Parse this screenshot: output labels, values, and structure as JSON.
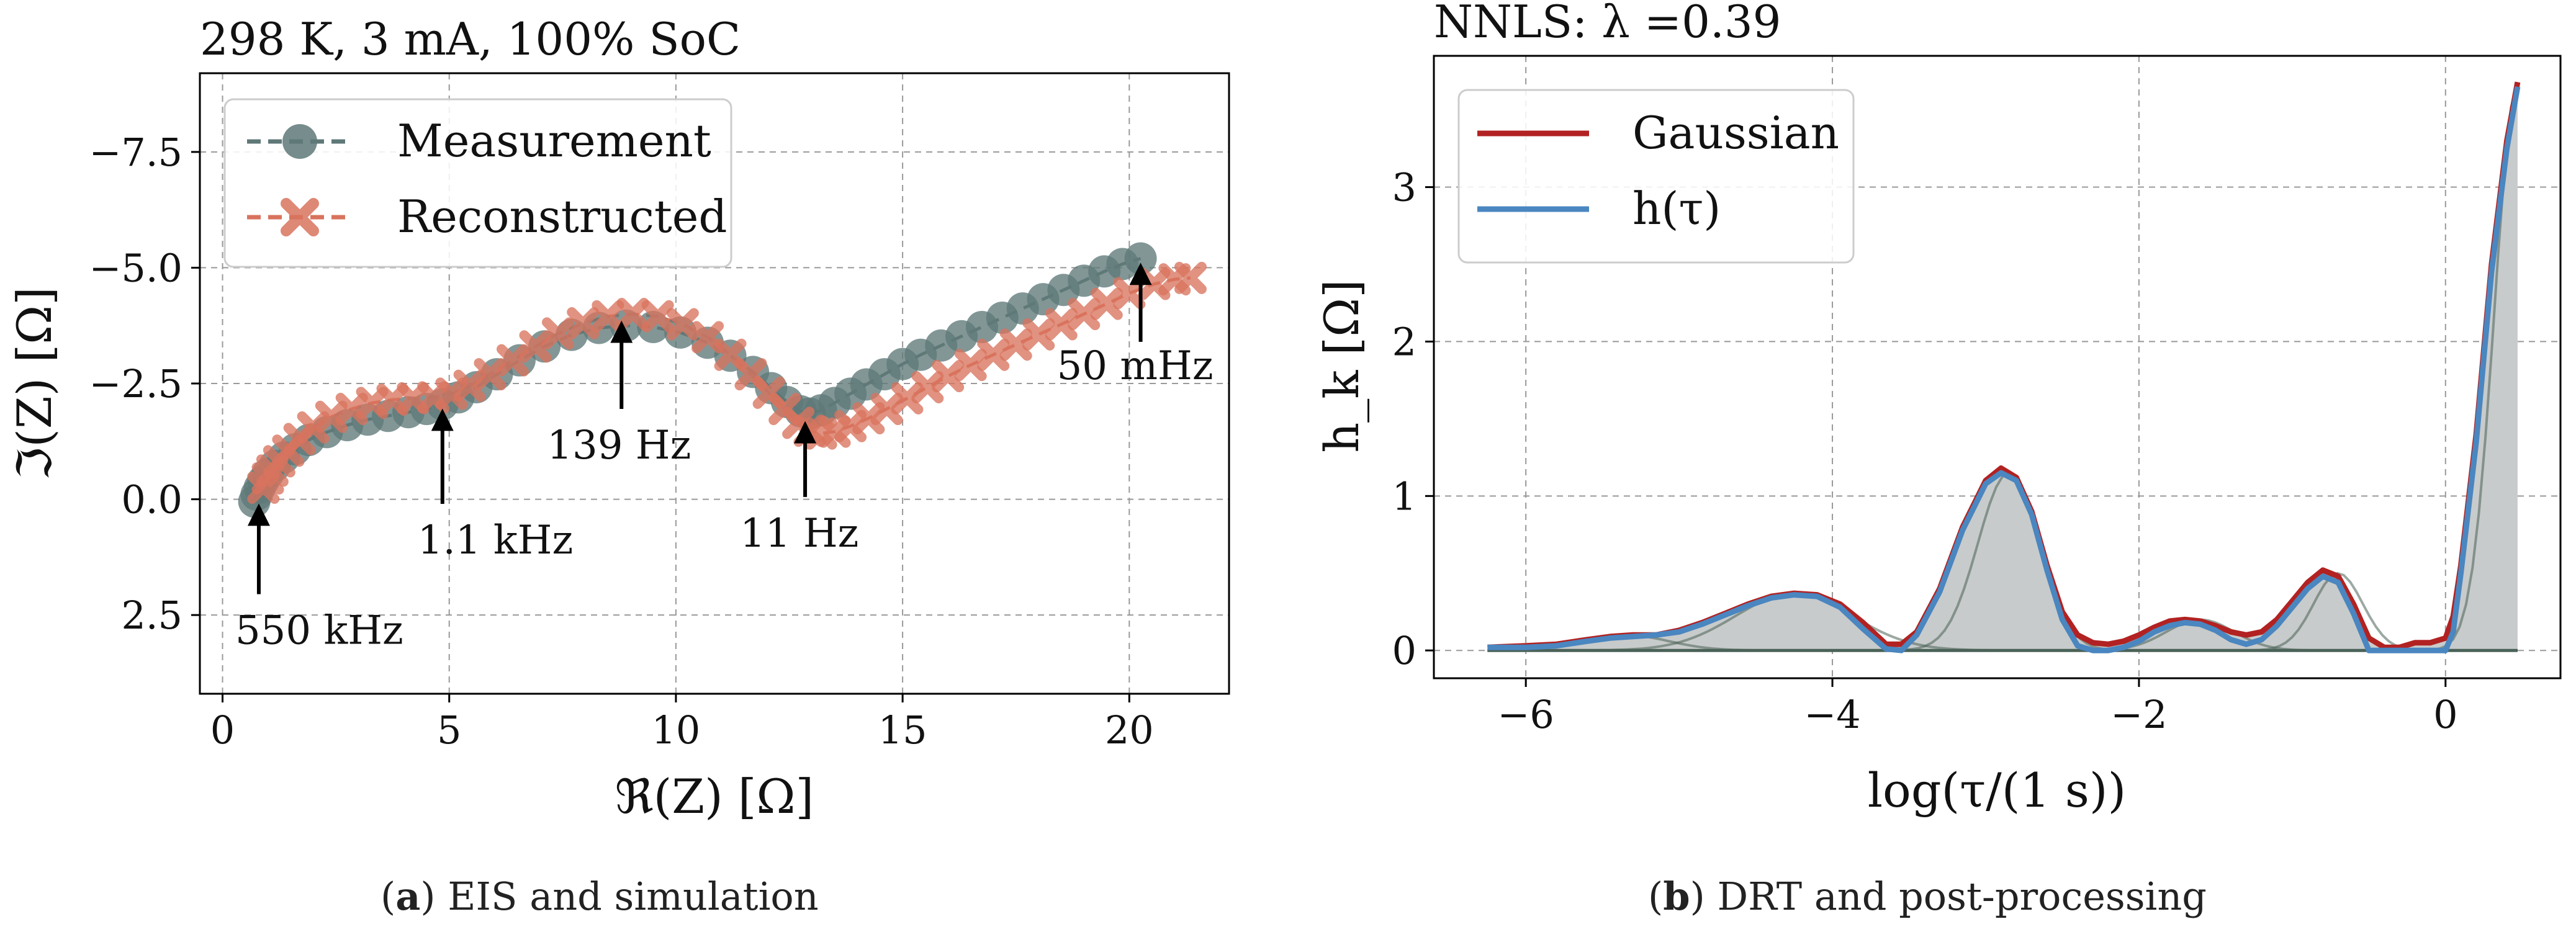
{
  "chart_data": [
    {
      "type": "scatter",
      "title": "298 K, 3 mA, 100% SoC",
      "xlabel": "ℜ(Z) [Ω]",
      "ylabel": "ℑ(Z) [Ω]",
      "xlim": [
        -0.5,
        22.2
      ],
      "ylim": [
        4.2,
        -9.2
      ],
      "y_inverted": true,
      "grid": true,
      "legend_position": "top-left",
      "x_ticks": [
        0,
        5,
        10,
        15,
        20
      ],
      "x_tick_labels": [
        "0",
        "5",
        "10",
        "15",
        "20"
      ],
      "y_ticks": [
        -7.5,
        -5.0,
        -2.5,
        0.0,
        2.5
      ],
      "y_tick_labels": [
        "−7.5",
        "−5.0",
        "−2.5",
        "0.0",
        "2.5"
      ],
      "colors": {
        "measurement": "#5f7878",
        "reconstructed": "#d8735e"
      },
      "series": [
        {
          "name": "Measurement",
          "marker": "circle",
          "x": [
            0.7,
            0.75,
            0.82,
            0.9,
            1.0,
            1.15,
            1.35,
            1.6,
            1.9,
            2.3,
            2.75,
            3.2,
            3.65,
            4.1,
            4.5,
            4.85,
            5.2,
            5.6,
            6.05,
            6.55,
            7.1,
            7.7,
            8.3,
            8.9,
            9.5,
            10.1,
            10.7,
            11.2,
            11.7,
            12.1,
            12.45,
            12.75,
            12.95,
            13.2,
            13.5,
            13.85,
            14.2,
            14.6,
            15.0,
            15.4,
            15.85,
            16.3,
            16.75,
            17.2,
            17.65,
            18.1,
            18.55,
            19.0,
            19.45,
            19.85,
            20.25
          ],
          "y": [
            0.05,
            -0.1,
            -0.25,
            -0.4,
            -0.55,
            -0.72,
            -0.9,
            -1.08,
            -1.28,
            -1.45,
            -1.6,
            -1.72,
            -1.8,
            -1.88,
            -1.95,
            -2.05,
            -2.2,
            -2.42,
            -2.7,
            -3.0,
            -3.3,
            -3.55,
            -3.7,
            -3.75,
            -3.72,
            -3.6,
            -3.38,
            -3.1,
            -2.75,
            -2.4,
            -2.1,
            -1.9,
            -1.85,
            -1.92,
            -2.08,
            -2.28,
            -2.48,
            -2.7,
            -2.92,
            -3.12,
            -3.32,
            -3.52,
            -3.72,
            -3.92,
            -4.12,
            -4.32,
            -4.52,
            -4.72,
            -4.92,
            -5.08,
            -5.2
          ]
        },
        {
          "name": "Reconstructed",
          "marker": "x",
          "x": [
            0.9,
            1.0,
            1.1,
            1.25,
            1.45,
            1.7,
            2.0,
            2.4,
            2.85,
            3.3,
            3.75,
            4.2,
            4.65,
            5.05,
            5.45,
            5.9,
            6.4,
            6.9,
            7.4,
            7.95,
            8.5,
            9.05,
            9.6,
            10.15,
            10.7,
            11.2,
            11.65,
            12.05,
            12.4,
            12.7,
            12.95,
            13.2,
            13.5,
            13.85,
            14.25,
            14.65,
            15.1,
            15.55,
            16.0,
            16.5,
            17.0,
            17.5,
            18.0,
            18.5,
            19.0,
            19.5,
            20.0,
            20.55,
            21.0,
            21.35
          ],
          "y": [
            -0.25,
            -0.45,
            -0.62,
            -0.82,
            -1.05,
            -1.3,
            -1.55,
            -1.78,
            -1.95,
            -2.08,
            -2.15,
            -2.18,
            -2.2,
            -2.28,
            -2.45,
            -2.7,
            -3.0,
            -3.3,
            -3.58,
            -3.8,
            -3.95,
            -4.0,
            -3.95,
            -3.78,
            -3.5,
            -3.12,
            -2.7,
            -2.3,
            -1.95,
            -1.65,
            -1.48,
            -1.42,
            -1.46,
            -1.58,
            -1.75,
            -1.95,
            -2.18,
            -2.42,
            -2.66,
            -2.9,
            -3.12,
            -3.34,
            -3.56,
            -3.78,
            -4.0,
            -4.22,
            -4.45,
            -4.65,
            -4.75,
            -4.78
          ]
        }
      ],
      "legend": [
        "Measurement",
        "Reconstructed"
      ],
      "annotations": [
        {
          "label": "550 kHz",
          "point": [
            0.8,
            0.0
          ],
          "arrow_from": [
            0.8,
            2.05
          ]
        },
        {
          "label": "1.1 kHz",
          "point": [
            4.85,
            -2.05
          ],
          "arrow_from": [
            4.85,
            0.1
          ]
        },
        {
          "label": "139 Hz",
          "point": [
            8.8,
            -3.95
          ],
          "arrow_from": [
            8.8,
            -1.95
          ]
        },
        {
          "label": "11 Hz",
          "point": [
            12.85,
            -1.78
          ],
          "arrow_from": [
            12.85,
            -0.05
          ]
        },
        {
          "label": "50 mHz",
          "point": [
            20.25,
            -5.2
          ],
          "arrow_from": [
            20.25,
            -3.4
          ]
        }
      ]
    },
    {
      "type": "area",
      "title": "NNLS: λ =0.39",
      "xlabel": "log(τ/(1 s))",
      "ylabel": "h_k [Ω]",
      "xlim": [
        -6.6,
        0.75
      ],
      "ylim": [
        -0.18,
        3.85
      ],
      "grid": true,
      "legend_position": "top-left",
      "x_ticks": [
        -6,
        -4,
        -2,
        0
      ],
      "x_tick_labels": [
        "−6",
        "−4",
        "−2",
        "0"
      ],
      "y_ticks": [
        0,
        1,
        2,
        3
      ],
      "y_tick_labels": [
        "0",
        "1",
        "2",
        "3"
      ],
      "colors": {
        "gaussian": "#b22222",
        "h_tau": "#4a86c0",
        "fill": "#c8cbcb",
        "components": "#4a6258"
      },
      "x": [
        -6.25,
        -6.0,
        -5.8,
        -5.6,
        -5.45,
        -5.3,
        -5.15,
        -5.0,
        -4.85,
        -4.7,
        -4.55,
        -4.4,
        -4.25,
        -4.1,
        -3.95,
        -3.8,
        -3.65,
        -3.55,
        -3.45,
        -3.3,
        -3.15,
        -3.0,
        -2.9,
        -2.8,
        -2.7,
        -2.6,
        -2.5,
        -2.4,
        -2.3,
        -2.2,
        -2.1,
        -2.0,
        -1.9,
        -1.8,
        -1.7,
        -1.6,
        -1.5,
        -1.4,
        -1.3,
        -1.2,
        -1.1,
        -1.0,
        -0.9,
        -0.8,
        -0.7,
        -0.6,
        -0.5,
        -0.4,
        -0.3,
        -0.2,
        -0.1,
        0.0,
        0.05,
        0.1,
        0.2,
        0.3,
        0.4,
        0.47
      ],
      "series": [
        {
          "name": "Gaussian",
          "values": [
            0.02,
            0.03,
            0.04,
            0.07,
            0.09,
            0.1,
            0.1,
            0.13,
            0.18,
            0.24,
            0.3,
            0.35,
            0.37,
            0.36,
            0.3,
            0.18,
            0.04,
            0.04,
            0.12,
            0.4,
            0.8,
            1.1,
            1.18,
            1.12,
            0.9,
            0.55,
            0.25,
            0.1,
            0.05,
            0.04,
            0.06,
            0.1,
            0.15,
            0.19,
            0.2,
            0.19,
            0.16,
            0.12,
            0.1,
            0.12,
            0.2,
            0.32,
            0.44,
            0.52,
            0.48,
            0.3,
            0.08,
            0.02,
            0.02,
            0.05,
            0.05,
            0.08,
            0.22,
            0.55,
            1.4,
            2.5,
            3.3,
            3.68
          ]
        },
        {
          "name": "h(τ)",
          "values": [
            0.02,
            0.02,
            0.03,
            0.06,
            0.08,
            0.09,
            0.1,
            0.12,
            0.17,
            0.23,
            0.29,
            0.34,
            0.36,
            0.35,
            0.28,
            0.14,
            0.01,
            0.0,
            0.1,
            0.38,
            0.78,
            1.08,
            1.15,
            1.1,
            0.88,
            0.52,
            0.2,
            0.03,
            0.0,
            0.0,
            0.02,
            0.06,
            0.12,
            0.16,
            0.18,
            0.17,
            0.13,
            0.07,
            0.04,
            0.07,
            0.16,
            0.28,
            0.4,
            0.48,
            0.44,
            0.24,
            0.0,
            0.0,
            0.0,
            0.0,
            0.0,
            0.0,
            0.12,
            0.5,
            1.35,
            2.45,
            3.25,
            3.65
          ]
        }
      ],
      "gaussian_components": [
        {
          "center": -5.35,
          "height": 0.1,
          "width": 0.28
        },
        {
          "center": -4.25,
          "height": 0.37,
          "width": 0.38
        },
        {
          "center": -2.85,
          "height": 1.15,
          "width": 0.2
        },
        {
          "center": -1.6,
          "height": 0.2,
          "width": 0.22
        },
        {
          "center": -0.7,
          "height": 0.5,
          "width": 0.16
        },
        {
          "center": 0.47,
          "height": 3.66,
          "width": 0.15
        }
      ],
      "legend": [
        "Gaussian",
        "h(τ)"
      ]
    }
  ],
  "captions": {
    "a_letter": "a",
    "a_text": "EIS and simulation",
    "b_letter": "b",
    "b_text": "DRT and post-processing"
  }
}
